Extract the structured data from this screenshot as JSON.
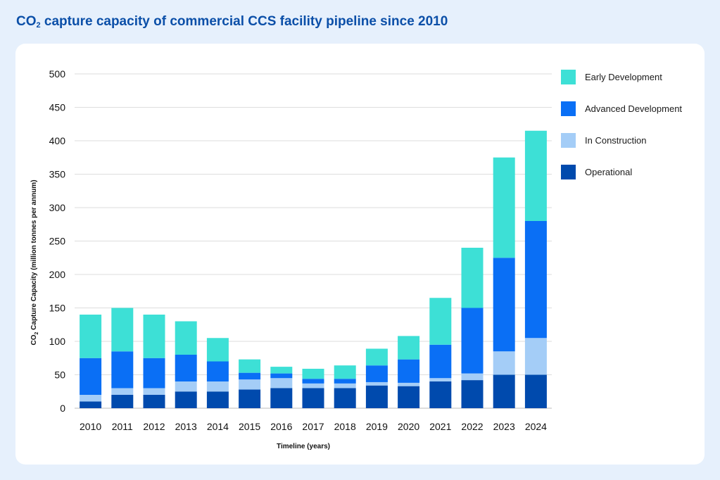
{
  "page": {
    "title_main": "CO",
    "title_sub": "2",
    "title_rest": " capture capacity of commercial CCS facility pipeline since 2010"
  },
  "colors": {
    "background": "#e6f0fc",
    "card": "#ffffff",
    "title": "#0b4fa8",
    "grid": "#dddddd"
  },
  "chart_data": {
    "type": "bar",
    "stacked": true,
    "categories": [
      "2010",
      "2011",
      "2012",
      "2013",
      "2014",
      "2015",
      "2016",
      "2017",
      "2018",
      "2019",
      "2020",
      "2021",
      "2022",
      "2023",
      "2024"
    ],
    "series": [
      {
        "name": "Operational",
        "color": "#004aad",
        "values": [
          10,
          20,
          20,
          25,
          25,
          28,
          30,
          30,
          30,
          34,
          33,
          40,
          42,
          50,
          50
        ]
      },
      {
        "name": "In Construction",
        "color": "#a4cdf7",
        "values": [
          10,
          10,
          10,
          15,
          15,
          15,
          15,
          7,
          7,
          5,
          5,
          5,
          10,
          35,
          55
        ]
      },
      {
        "name": "Advanced Development",
        "color": "#0a6ff5",
        "values": [
          55,
          55,
          45,
          40,
          30,
          10,
          7,
          7,
          7,
          25,
          35,
          50,
          98,
          140,
          175
        ]
      },
      {
        "name": "Early Development",
        "color": "#3de0d6",
        "values": [
          65,
          65,
          65,
          50,
          35,
          20,
          10,
          15,
          20,
          25,
          35,
          70,
          90,
          150,
          135
        ]
      }
    ],
    "xlabel": "Timeline (years)",
    "ylabel_main": "CO",
    "ylabel_sub": "2",
    "ylabel_rest": " Capture Capacity (million tonnes per annum)",
    "ylim": [
      0,
      500
    ],
    "yticks": [
      0,
      50,
      100,
      150,
      200,
      250,
      300,
      350,
      400,
      450,
      500
    ],
    "grid": true,
    "legend_position": "right",
    "legend_order": [
      "Early Development",
      "Advanced Development",
      "In Construction",
      "Operational"
    ]
  }
}
